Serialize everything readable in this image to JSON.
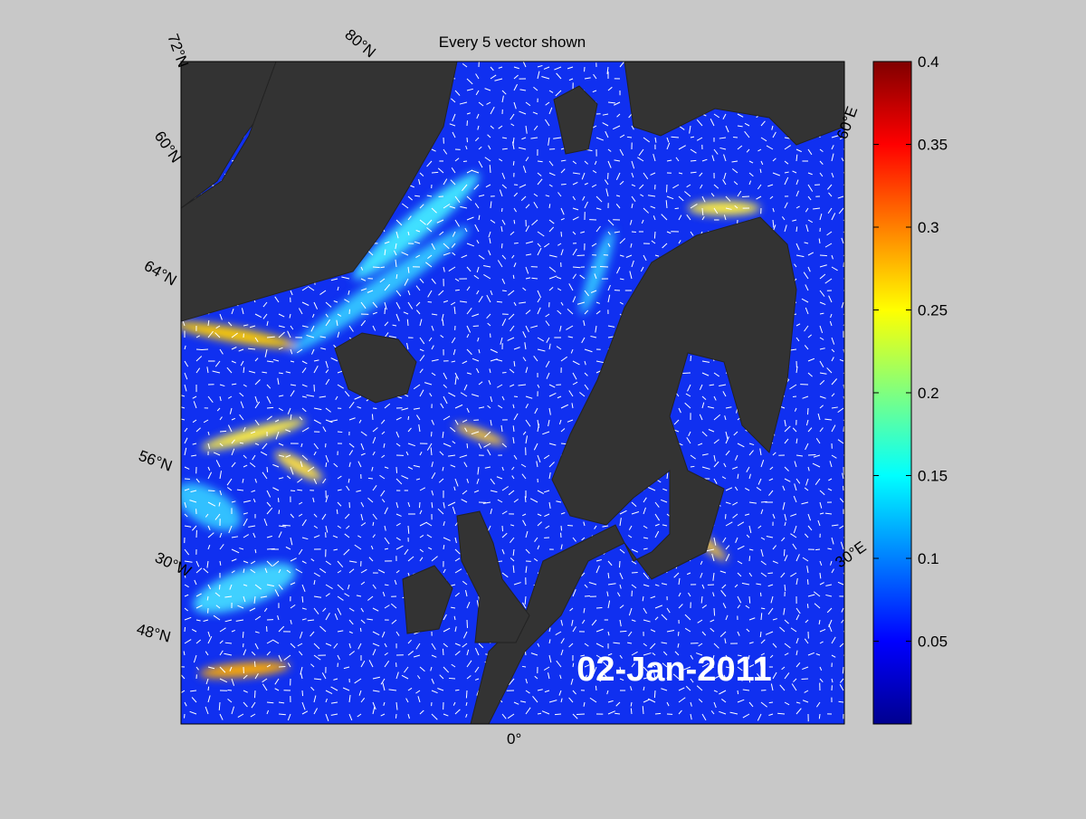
{
  "title": "Every 5 vector shown",
  "date": "02-Jan-2011",
  "map_labels": [
    "72°N",
    "80°N",
    "60°N",
    "64°N",
    "56°N",
    "30°W",
    "48°N",
    "0°",
    "60°E",
    "30°E"
  ],
  "colorbar": {
    "lim": [
      0,
      0.4
    ],
    "ticks": [
      0.05,
      0.1,
      0.15,
      0.2,
      0.25,
      0.3,
      0.35,
      0.4
    ]
  }
}
